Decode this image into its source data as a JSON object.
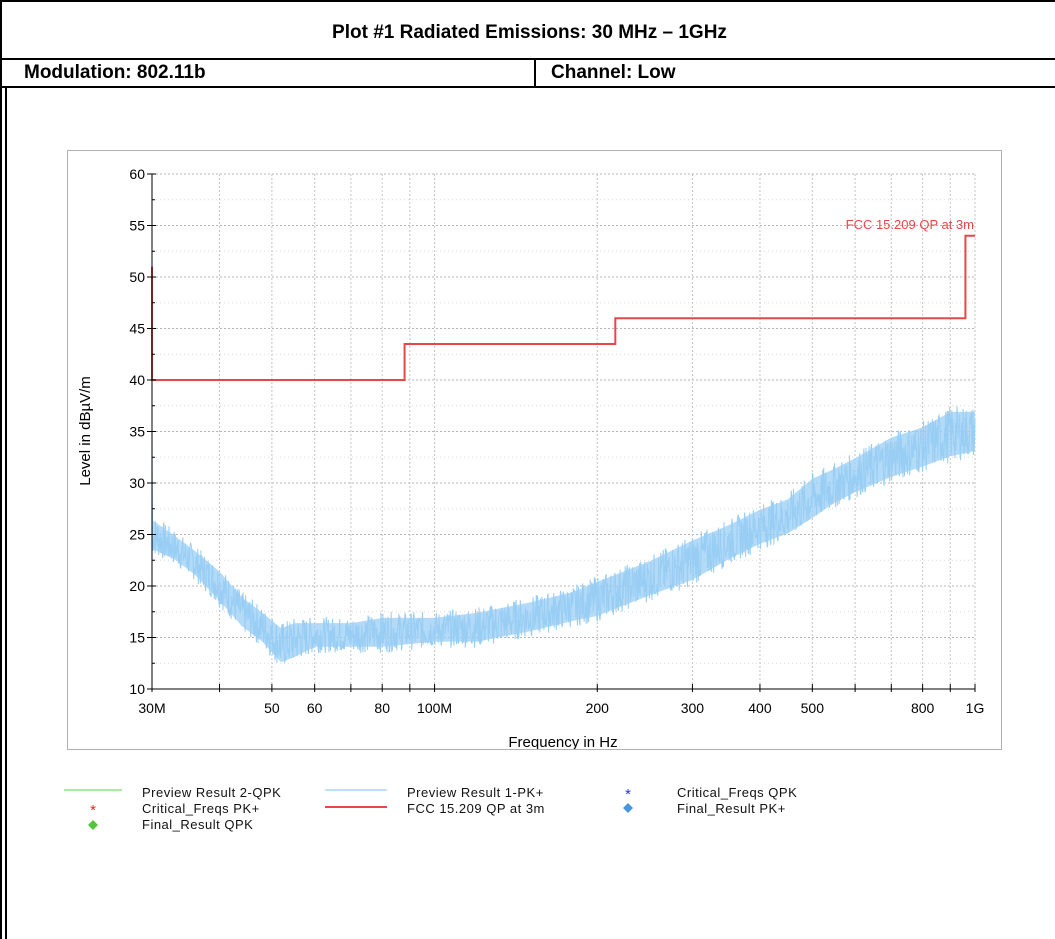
{
  "header": {
    "title": "Plot #1 Radiated Emissions: 30 MHz – 1GHz",
    "modulation": "Modulation: 802.11b",
    "channel": "Channel: Low"
  },
  "chart_data": {
    "type": "line",
    "xlabel": "Frequency in Hz",
    "ylabel": "Level in dBµV/m",
    "x_scale": "log",
    "xlim": [
      30,
      1000
    ],
    "ylim": [
      10,
      60
    ],
    "y_ticks": [
      10,
      15,
      20,
      25,
      30,
      35,
      40,
      45,
      50,
      55,
      60
    ],
    "x_tick_labels": [
      {
        "value": 30,
        "label": "30M"
      },
      {
        "value": 50,
        "label": "50"
      },
      {
        "value": 60,
        "label": "60"
      },
      {
        "value": 80,
        "label": "80"
      },
      {
        "value": 100,
        "label": "100M"
      },
      {
        "value": 200,
        "label": "200"
      },
      {
        "value": 300,
        "label": "300"
      },
      {
        "value": 400,
        "label": "400"
      },
      {
        "value": 500,
        "label": "500"
      },
      {
        "value": 800,
        "label": "800"
      },
      {
        "value": 1000,
        "label": "1G"
      }
    ],
    "x_minor_ticks": [
      40,
      70,
      90,
      600,
      700,
      900
    ],
    "grid": true,
    "limit_line": {
      "name": "FCC 15.209 QP at 3m",
      "color": "#e8474a",
      "points": [
        [
          30,
          51
        ],
        [
          30,
          40
        ],
        [
          88,
          40
        ],
        [
          88,
          43.5
        ],
        [
          216,
          43.5
        ],
        [
          216,
          46
        ],
        [
          960,
          46
        ],
        [
          960,
          54
        ],
        [
          1000,
          54
        ]
      ]
    },
    "limit_annotation": "FCC 15.209 QP at 3m",
    "trace": {
      "name": "Preview Result 1-PK+",
      "color": "#99cdf4",
      "band": [
        {
          "f": 30,
          "lo": 23,
          "hi": 27
        },
        {
          "f": 33,
          "lo": 22,
          "hi": 25.5
        },
        {
          "f": 36,
          "lo": 20.5,
          "hi": 24
        },
        {
          "f": 40,
          "lo": 18,
          "hi": 22
        },
        {
          "f": 44,
          "lo": 15.5,
          "hi": 19.5
        },
        {
          "f": 48,
          "lo": 14,
          "hi": 18
        },
        {
          "f": 52,
          "lo": 12,
          "hi": 16.5
        },
        {
          "f": 55,
          "lo": 12.5,
          "hi": 17
        },
        {
          "f": 60,
          "lo": 13.5,
          "hi": 17
        },
        {
          "f": 70,
          "lo": 13.5,
          "hi": 17
        },
        {
          "f": 80,
          "lo": 13.5,
          "hi": 17.5
        },
        {
          "f": 100,
          "lo": 14,
          "hi": 17.5
        },
        {
          "f": 120,
          "lo": 14,
          "hi": 18
        },
        {
          "f": 150,
          "lo": 15,
          "hi": 19
        },
        {
          "f": 180,
          "lo": 16,
          "hi": 20
        },
        {
          "f": 200,
          "lo": 16.5,
          "hi": 21
        },
        {
          "f": 250,
          "lo": 18.5,
          "hi": 23
        },
        {
          "f": 300,
          "lo": 20,
          "hi": 25
        },
        {
          "f": 350,
          "lo": 22,
          "hi": 26.5
        },
        {
          "f": 400,
          "lo": 23.5,
          "hi": 28
        },
        {
          "f": 450,
          "lo": 24.5,
          "hi": 29
        },
        {
          "f": 500,
          "lo": 26,
          "hi": 31
        },
        {
          "f": 550,
          "lo": 27.5,
          "hi": 32
        },
        {
          "f": 600,
          "lo": 28.5,
          "hi": 33
        },
        {
          "f": 700,
          "lo": 30,
          "hi": 35
        },
        {
          "f": 800,
          "lo": 31,
          "hi": 36
        },
        {
          "f": 900,
          "lo": 32,
          "hi": 37.5
        },
        {
          "f": 1000,
          "lo": 32.5,
          "hi": 37.5
        }
      ]
    },
    "legend": [
      {
        "label": "Preview Result 2-QPK",
        "symbol": "line",
        "color": "#77e06a"
      },
      {
        "label": "Preview Result 1-PK+",
        "symbol": "line",
        "color": "#99cdf4"
      },
      {
        "label": "Critical_Freqs QPK",
        "symbol": "star",
        "color": "#2233dd"
      },
      {
        "label": "Critical_Freqs PK+",
        "symbol": "star",
        "color": "#ee2222"
      },
      {
        "label": "FCC 15.209 QP at 3m",
        "symbol": "line",
        "color": "#e8474a"
      },
      {
        "label": "Final_Result PK+",
        "symbol": "diamond",
        "color": "#4a96dc"
      },
      {
        "label": "Final_Result QPK",
        "symbol": "diamond",
        "color": "#55c53f"
      }
    ]
  }
}
